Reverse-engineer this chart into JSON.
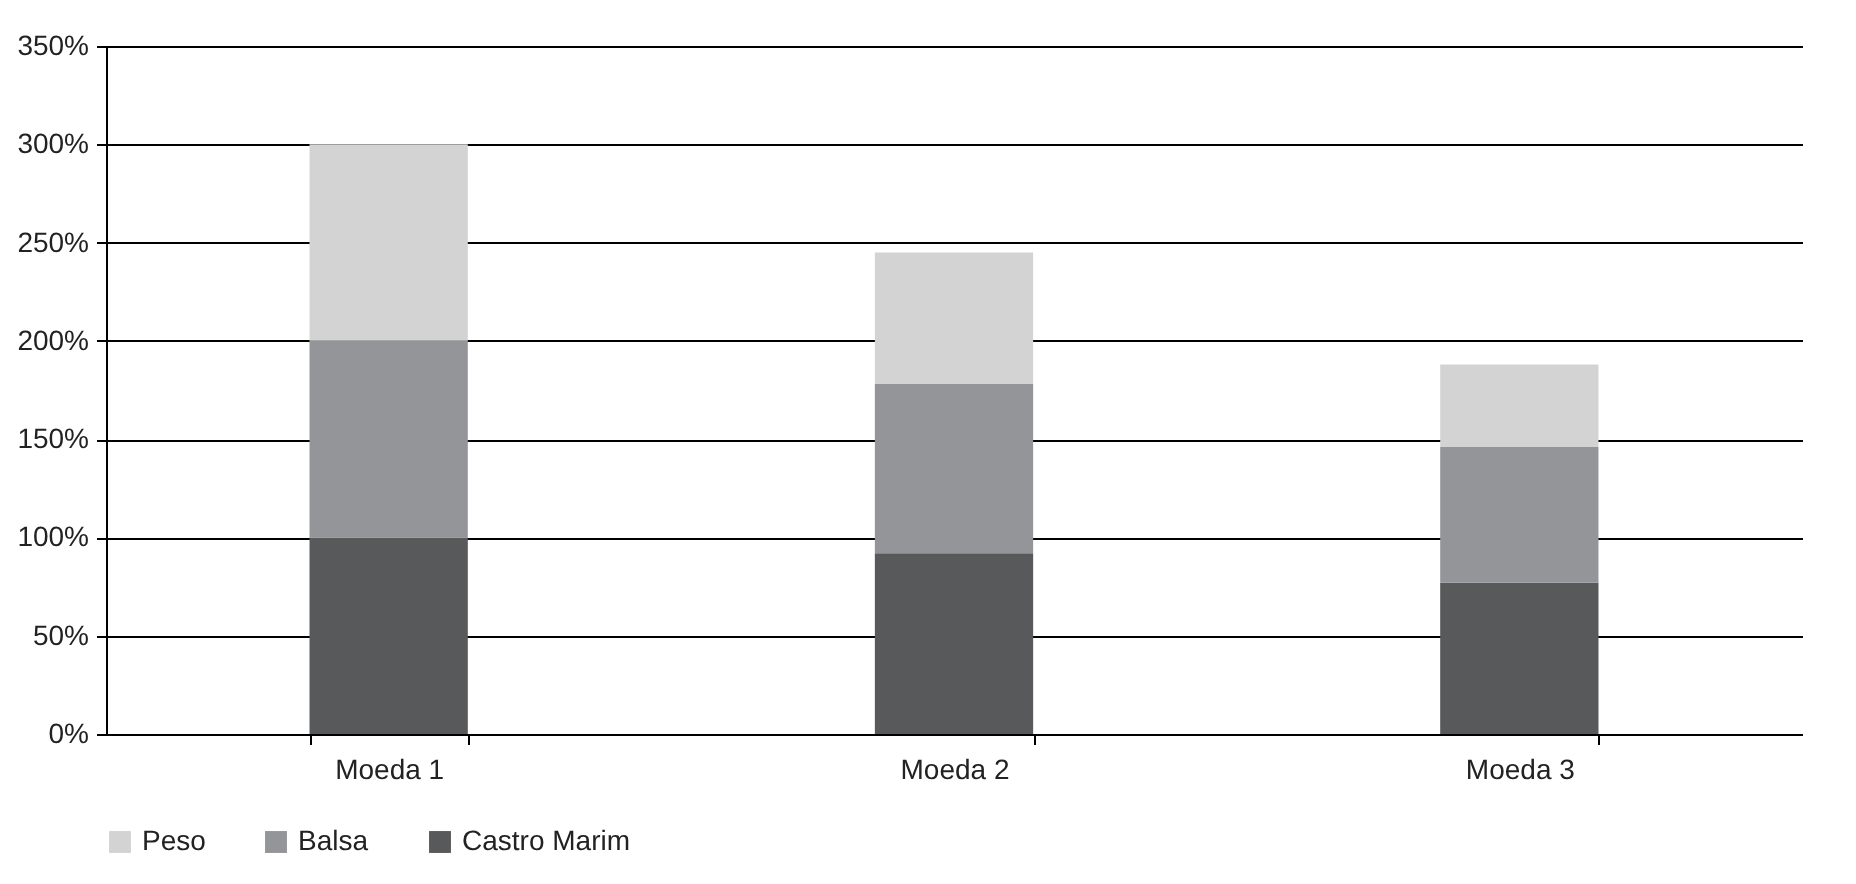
{
  "chart_data": {
    "type": "bar",
    "stacked": true,
    "categories": [
      "Moeda 1",
      "Moeda 2",
      "Moeda 3"
    ],
    "series": [
      {
        "name": "Castro Marim",
        "color": "#58595b",
        "values": [
          100,
          92,
          77
        ]
      },
      {
        "name": "Balsa",
        "color": "#939598",
        "values": [
          100,
          86,
          69
        ]
      },
      {
        "name": "Peso",
        "color": "#d3d3d3",
        "values": [
          100,
          67,
          42
        ]
      }
    ],
    "ylim": [
      0,
      350
    ],
    "yticks": [
      {
        "value": 0,
        "label": "0%"
      },
      {
        "value": 50,
        "label": "50%"
      },
      {
        "value": 100,
        "label": "100%"
      },
      {
        "value": 150,
        "label": "150%"
      },
      {
        "value": 200,
        "label": "200%"
      },
      {
        "value": 250,
        "label": "250%"
      },
      {
        "value": 300,
        "label": "300%"
      },
      {
        "value": 350,
        "label": "350%"
      }
    ],
    "grid": "y",
    "legend": "bottom"
  }
}
